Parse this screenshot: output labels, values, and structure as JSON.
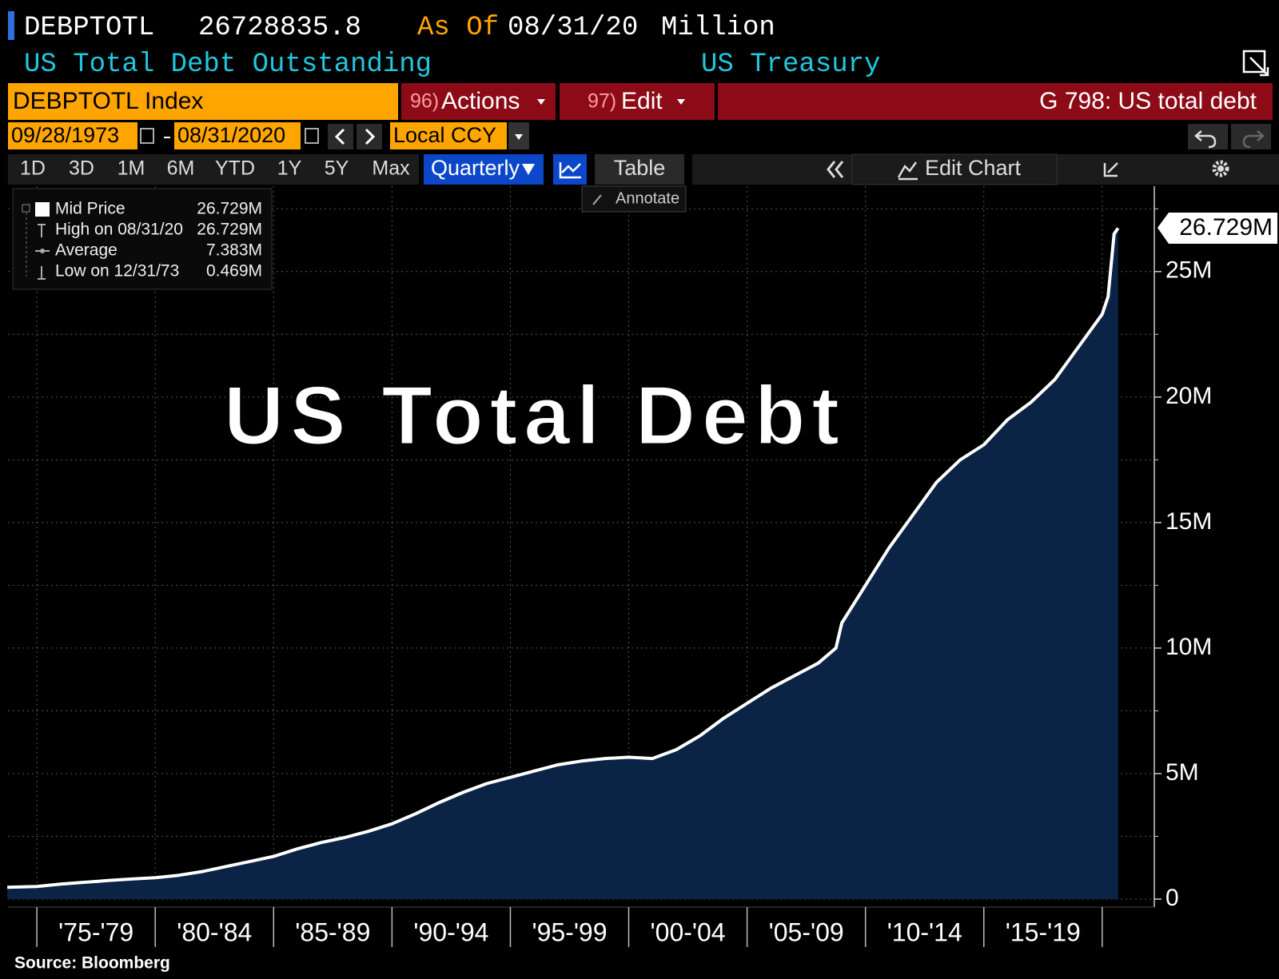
{
  "header": {
    "ticker": "DEBPTOTL",
    "value": "26728835.8",
    "as_of_label": "As Of",
    "as_of_date": "08/31/20",
    "unit": "Million",
    "description": "US Total Debt Outstanding",
    "source_name": "US Treasury"
  },
  "toolbar": {
    "security": "DEBPTOTL Index",
    "actions_num": "96)",
    "actions": "Actions",
    "edit_num": "97)",
    "edit": "Edit",
    "chart_name": "G 798: US total debt"
  },
  "dates": {
    "start": "09/28/1973",
    "end": "08/31/2020",
    "currency": "Local CCY"
  },
  "periods": [
    "1D",
    "3D",
    "1M",
    "6M",
    "YTD",
    "1Y",
    "5Y",
    "Max"
  ],
  "buttons": {
    "frequency": "Quarterly",
    "table": "Table",
    "edit_chart": "Edit Chart",
    "annotate": "Annotate"
  },
  "legend": [
    {
      "label": "Mid Price",
      "value": "26.729M"
    },
    {
      "label": "High on 08/31/20",
      "value": "26.729M"
    },
    {
      "label": "Average",
      "value": "7.383M"
    },
    {
      "label": "Low on 12/31/73",
      "value": "0.469M"
    }
  ],
  "last_value_label": "26.729M",
  "source": "Source: Bloomberg",
  "chart_data": {
    "type": "area",
    "title": "US Total Debt",
    "x": [
      1973.75,
      1975,
      1976,
      1977,
      1978,
      1979,
      1980,
      1981,
      1982,
      1983,
      1984,
      1985,
      1986,
      1987,
      1988,
      1989,
      1990,
      1991,
      1992,
      1993,
      1994,
      1995,
      1996,
      1997,
      1998,
      1999,
      2000,
      2001,
      2002,
      2003,
      2004,
      2005,
      2006,
      2007,
      2008,
      2008.75,
      2009,
      2010,
      2011,
      2012,
      2013,
      2014,
      2015,
      2016,
      2017,
      2018,
      2019,
      2020,
      2020.25,
      2020.5,
      2020.67
    ],
    "series": [
      {
        "name": "Mid Price",
        "color": "#ffffff",
        "fill": "#0b2446",
        "values": [
          0.47,
          0.5,
          0.6,
          0.67,
          0.74,
          0.8,
          0.85,
          0.95,
          1.1,
          1.3,
          1.5,
          1.7,
          2.0,
          2.25,
          2.45,
          2.7,
          3.0,
          3.4,
          3.85,
          4.25,
          4.6,
          4.85,
          5.1,
          5.35,
          5.5,
          5.6,
          5.65,
          5.6,
          5.95,
          6.5,
          7.2,
          7.8,
          8.4,
          8.9,
          9.4,
          10.0,
          11.0,
          12.5,
          14.0,
          15.3,
          16.6,
          17.5,
          18.1,
          19.1,
          19.8,
          20.7,
          22.0,
          23.3,
          24.0,
          26.5,
          26.729
        ]
      }
    ],
    "xlim": [
      1973.78,
      2022.2
    ],
    "xticks": [
      {
        "value": 1977.5,
        "label": "'75-'79"
      },
      {
        "value": 1982.5,
        "label": "'80-'84"
      },
      {
        "value": 1987.5,
        "label": "'85-'89"
      },
      {
        "value": 1992.5,
        "label": "'90-'94"
      },
      {
        "value": 1997.5,
        "label": "'95-'99"
      },
      {
        "value": 2002.5,
        "label": "'00-'04"
      },
      {
        "value": 2007.5,
        "label": "'05-'09"
      },
      {
        "value": 2012.5,
        "label": "'10-'14"
      },
      {
        "value": 2017.5,
        "label": "'15-'19"
      }
    ],
    "ylim": [
      0,
      28.4
    ],
    "yticks": [
      0,
      {
        "value": 5,
        "label": "5M"
      },
      {
        "value": 10,
        "label": "10M"
      },
      {
        "value": 15,
        "label": "15M"
      },
      {
        "value": 20,
        "label": "20M"
      },
      {
        "value": 25,
        "label": "25M"
      }
    ],
    "yminorticks": [
      2.5,
      7.5,
      12.5,
      17.5,
      22.5,
      27.5
    ],
    "grid": true
  }
}
